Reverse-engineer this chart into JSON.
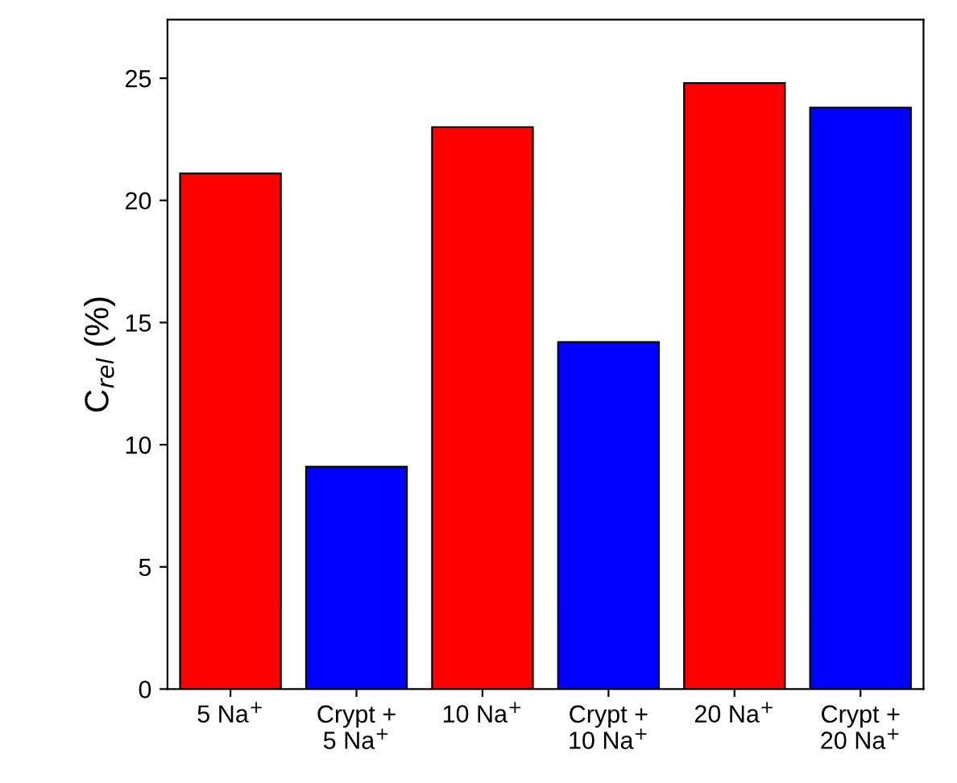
{
  "chart_data": {
    "type": "bar",
    "ylabel": "C$_{rel}$ (%)",
    "categories": [
      "5 Na$^{+}$",
      "Crypt +\n5 Na$^{+}$",
      "10 Na$^{+}$",
      "Crypt +\n10 Na$^{+}$",
      "20 Na$^{+}$",
      "Crypt +\n20 Na$^{+}$"
    ],
    "values": [
      21.1,
      9.1,
      23.0,
      14.2,
      24.8,
      23.8
    ],
    "colors": [
      "#ff0000",
      "#0000ff",
      "#ff0000",
      "#0000ff",
      "#ff0000",
      "#0000ff"
    ],
    "ylim": [
      0,
      27.4
    ],
    "yticks": [
      0,
      5,
      10,
      15,
      20,
      25
    ],
    "grid": false
  }
}
